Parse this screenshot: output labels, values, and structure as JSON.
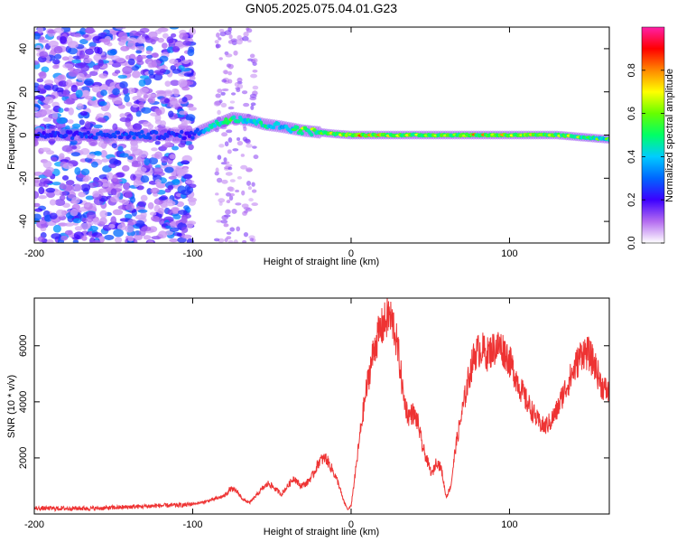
{
  "title": "GN05.2025.075.04.01.G23",
  "chart_data": [
    {
      "type": "heatmap",
      "xlabel": "Height of straight line (km)",
      "ylabel": "Frequency (Hz)",
      "xlim": [
        -200,
        163
      ],
      "ylim": [
        -50,
        50
      ],
      "xticks": [
        -200,
        -100,
        0,
        100
      ],
      "yticks": [
        -40,
        -20,
        0,
        20,
        40
      ],
      "colorbar": {
        "label": "Normalized spectral amplitude",
        "range": [
          0,
          1
        ],
        "ticks": [
          0.0,
          0.2,
          0.4,
          0.6,
          0.8
        ],
        "colors": [
          "#ffffff",
          "#b46cf0",
          "#3c00ff",
          "#0066ff",
          "#00ccff",
          "#00ff66",
          "#66ff00",
          "#ffff00",
          "#ff8800",
          "#ff0000",
          "#ff1fa8"
        ]
      },
      "ridge": [
        {
          "x": -200,
          "f": 0,
          "a": 0.3
        },
        {
          "x": -130,
          "f": 0,
          "a": 0.35
        },
        {
          "x": -100,
          "f": 0,
          "a": 0.3
        },
        {
          "x": -95,
          "f": 2,
          "a": 0.45
        },
        {
          "x": -85,
          "f": 5,
          "a": 0.6
        },
        {
          "x": -75,
          "f": 8,
          "a": 0.7
        },
        {
          "x": -65,
          "f": 7,
          "a": 0.55
        },
        {
          "x": -55,
          "f": 5,
          "a": 0.6
        },
        {
          "x": -45,
          "f": 4,
          "a": 0.5
        },
        {
          "x": -30,
          "f": 2,
          "a": 0.65
        },
        {
          "x": -10,
          "f": 0.5,
          "a": 0.7
        },
        {
          "x": 0,
          "f": 0,
          "a": 0.75
        },
        {
          "x": 50,
          "f": 0,
          "a": 0.7
        },
        {
          "x": 100,
          "f": 0,
          "a": 0.75
        },
        {
          "x": 130,
          "f": 0,
          "a": 0.7
        },
        {
          "x": 163,
          "f": -2,
          "a": 0.55
        }
      ]
    },
    {
      "type": "line",
      "xlabel": "Height of straight line (km)",
      "ylabel": "SNR (10 * v/v)",
      "xlim": [
        -200,
        163
      ],
      "ylim": [
        0,
        7700
      ],
      "xticks": [
        -200,
        -100,
        0,
        100
      ],
      "yticks": [
        2000,
        4000,
        6000
      ],
      "color": "#ee3333",
      "series": [
        {
          "x": [
            -200,
            -180,
            -160,
            -140,
            -120,
            -105,
            -95,
            -88,
            -80,
            -76,
            -72,
            -68,
            -64,
            -60,
            -56,
            -52,
            -48,
            -44,
            -40,
            -36,
            -32,
            -28,
            -24,
            -20,
            -16,
            -12,
            -8,
            -5,
            -2,
            0,
            3,
            6,
            9,
            12,
            15,
            18,
            21,
            24,
            27,
            30,
            33,
            36,
            39,
            42,
            45,
            48,
            51,
            54,
            57,
            60,
            63,
            66,
            70,
            74,
            78,
            82,
            86,
            90,
            94,
            98,
            102,
            106,
            110,
            114,
            118,
            122,
            126,
            130,
            134,
            138,
            142,
            146,
            150,
            154,
            158,
            163
          ],
          "y": [
            200,
            200,
            200,
            250,
            300,
            320,
            400,
            500,
            650,
            900,
            800,
            500,
            400,
            650,
            900,
            1100,
            900,
            700,
            1000,
            1300,
            1000,
            1100,
            1400,
            1900,
            2000,
            1600,
            1100,
            500,
            150,
            300,
            1600,
            3000,
            4200,
            5200,
            6000,
            6500,
            6800,
            7100,
            6700,
            5700,
            4200,
            3500,
            3600,
            3300,
            2400,
            1900,
            1400,
            1900,
            1600,
            600,
            1000,
            2400,
            3600,
            4800,
            5700,
            5900,
            5700,
            5900,
            6000,
            5700,
            5200,
            4600,
            4100,
            3700,
            3300,
            3100,
            3300,
            3700,
            4300,
            4800,
            5300,
            5800,
            5700,
            5300,
            4600,
            4300
          ]
        }
      ]
    }
  ]
}
